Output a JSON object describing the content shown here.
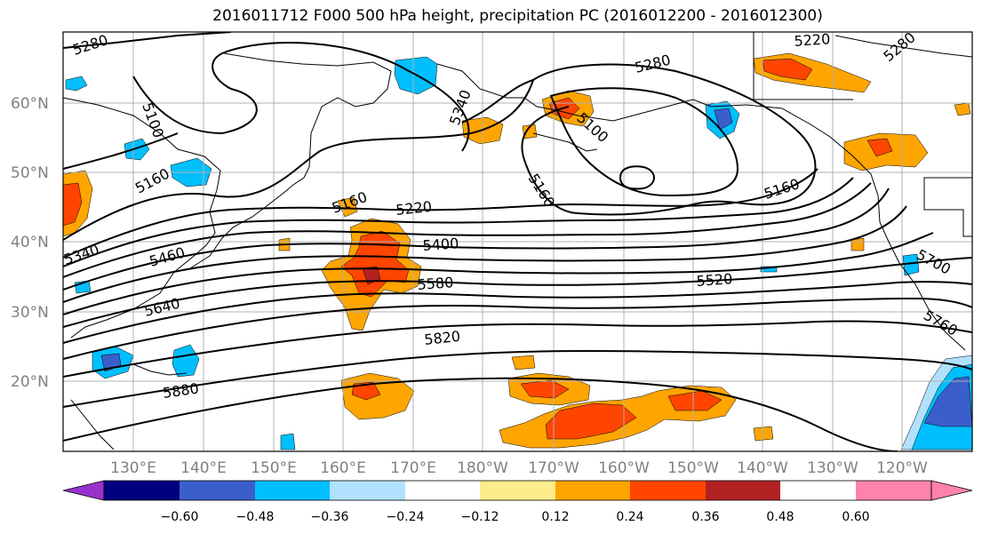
{
  "title": "2016011712 F000 500 hPa height, precipitation PC (2016012200 - 2016012300)",
  "latitude_labels": [
    "60°N",
    "50°N",
    "40°N",
    "30°N",
    "20°N"
  ],
  "longitude_labels": [
    "130°E",
    "140°E",
    "150°E",
    "160°E",
    "170°E",
    "180°W",
    "170°W",
    "160°W",
    "150°W",
    "140°W",
    "130°W",
    "120°W"
  ],
  "contour_labels": [
    "5280",
    "5100",
    "5160",
    "5340",
    "5340",
    "5280",
    "5100",
    "5160",
    "5160",
    "5220",
    "5160",
    "5220",
    "5280",
    "5400",
    "5460",
    "5580",
    "5520",
    "5640",
    "5700",
    "5820",
    "5760",
    "5880"
  ],
  "colorbar": {
    "tick_labels": [
      "−0.60",
      "−0.48",
      "−0.36",
      "−0.24",
      "−0.12",
      "0.12",
      "0.24",
      "0.36",
      "0.48",
      "0.60"
    ],
    "colors": [
      "#9932cc",
      "#000080",
      "#3a5fcd",
      "#00bfff",
      "#b0e2ff",
      "#ffffff",
      "#ffec8b",
      "#ffa500",
      "#ff4500",
      "#b22222",
      "#ff82ab"
    ]
  },
  "fill_colors": {
    "neg_light": "#b0e2ff",
    "neg_mid": "#00bfff",
    "neg_strong": "#3a5fcd",
    "pos_light": "#ffec8b",
    "pos_mid": "#ffa500",
    "pos_strong": "#ff4500",
    "pos_max": "#b22222"
  }
}
